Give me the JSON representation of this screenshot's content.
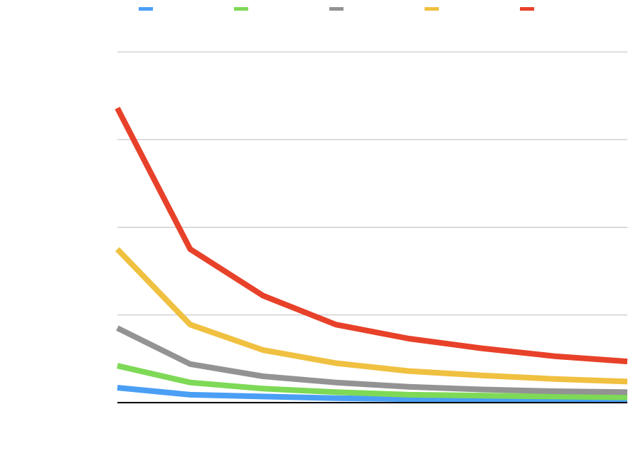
{
  "chart_data": {
    "type": "line",
    "title": "",
    "xlabel": "",
    "ylabel": "",
    "legend_position": "top",
    "grid": true,
    "ylim": [
      0,
      400
    ],
    "y_gridlines": [
      0,
      100,
      200,
      300,
      400
    ],
    "x": [
      1,
      2,
      3,
      4,
      5,
      6,
      7,
      8
    ],
    "series": [
      {
        "name": "",
        "color": "#4a9ff5",
        "values": [
          17,
          9,
          7,
          5,
          4,
          4,
          4,
          3
        ]
      },
      {
        "name": "",
        "color": "#7ed957",
        "values": [
          42,
          23,
          16,
          12,
          9,
          8,
          7,
          6
        ]
      },
      {
        "name": "",
        "color": "#939393",
        "values": [
          85,
          44,
          30,
          23,
          18,
          15,
          13,
          12
        ]
      },
      {
        "name": "",
        "color": "#f0c040",
        "values": [
          175,
          89,
          60,
          45,
          36,
          31,
          27,
          24
        ]
      },
      {
        "name": "",
        "color": "#e8412a",
        "values": [
          336,
          175,
          122,
          89,
          73,
          62,
          53,
          47
        ]
      }
    ]
  }
}
